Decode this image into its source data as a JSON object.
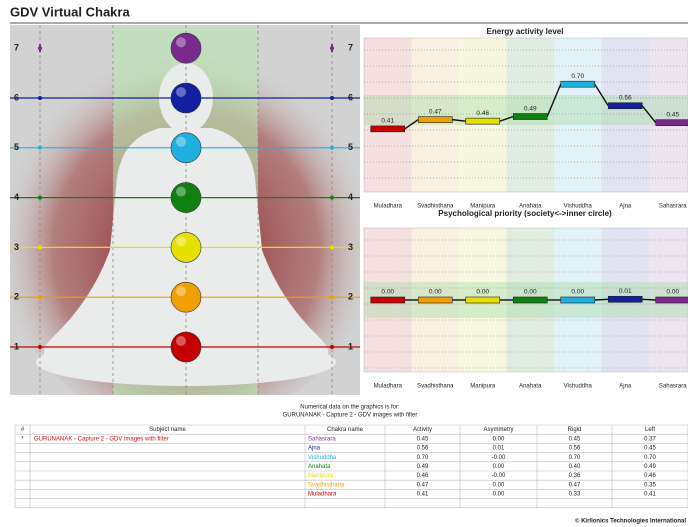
{
  "header": {
    "title": "GDV Virtual Chakra"
  },
  "chakra_colors": [
    "#c40000",
    "#f0a000",
    "#e6e000",
    "#108010",
    "#20b0e0",
    "#1020a0",
    "#7a2a8a"
  ],
  "figure": {
    "levels": [
      1,
      2,
      3,
      4,
      5,
      6,
      7
    ]
  },
  "charts": [
    {
      "type": "line",
      "title": "Energy activity level",
      "categories": [
        "Muladhara",
        "Svadhisthana",
        "Manipura",
        "Anahata",
        "Vishuddha",
        "Ajna",
        "Sahasrara"
      ],
      "values": [
        0.41,
        0.47,
        0.46,
        0.49,
        0.7,
        0.56,
        0.45
      ],
      "value_labels": [
        "0.41",
        "0.47",
        "0.46",
        "0.49",
        "0.70",
        "0.56",
        "0.45"
      ],
      "ylim": [
        0,
        1
      ]
    },
    {
      "type": "line",
      "title": "Psychological priority (society<->inner circle)",
      "categories": [
        "Muladhara",
        "Svadhisthana",
        "Manipura",
        "Anahata",
        "Vishuddha",
        "Ajna",
        "Sahasrara"
      ],
      "values": [
        0,
        0,
        0,
        0,
        0,
        0.01,
        0
      ],
      "value_labels": [
        "0.00",
        "0.00",
        "0.00",
        "0.00",
        "0.00",
        "0.01",
        "0.00"
      ],
      "ylim": [
        -1,
        1
      ]
    }
  ],
  "caption": {
    "line1": "Numerical data on the graphics is for:",
    "line2": "GURUNANAK - Capture 2 - GDV images with filter"
  },
  "table": {
    "columns": [
      "#",
      "Subject name",
      "Chakra name",
      "Activity",
      "Asymmetry",
      "Rigid",
      "Left"
    ],
    "subject_row": [
      "*",
      "GURUNANAK - Capture 2 - GDV images with filter"
    ],
    "rows": [
      [
        "Sahasrara",
        "0.45",
        "0.00",
        "0.45",
        "0.37"
      ],
      [
        "Ajna",
        "0.56",
        "0.01",
        "0.56",
        "0.45"
      ],
      [
        "Vishuddha",
        "0.70",
        "-0.00",
        "0.70",
        "0.70"
      ],
      [
        "Anahata",
        "0.49",
        "0.00",
        "0.40",
        "0.49"
      ],
      [
        "Manipura",
        "0.46",
        "-0.00",
        "0.36",
        "0.46"
      ],
      [
        "Svadhisthana",
        "0.47",
        "0.00",
        "0.47",
        "0.35"
      ],
      [
        "Muladhara",
        "0.41",
        "0.00",
        "0.33",
        "0.41"
      ]
    ]
  },
  "footer": "© Kirlionics Technologies International"
}
